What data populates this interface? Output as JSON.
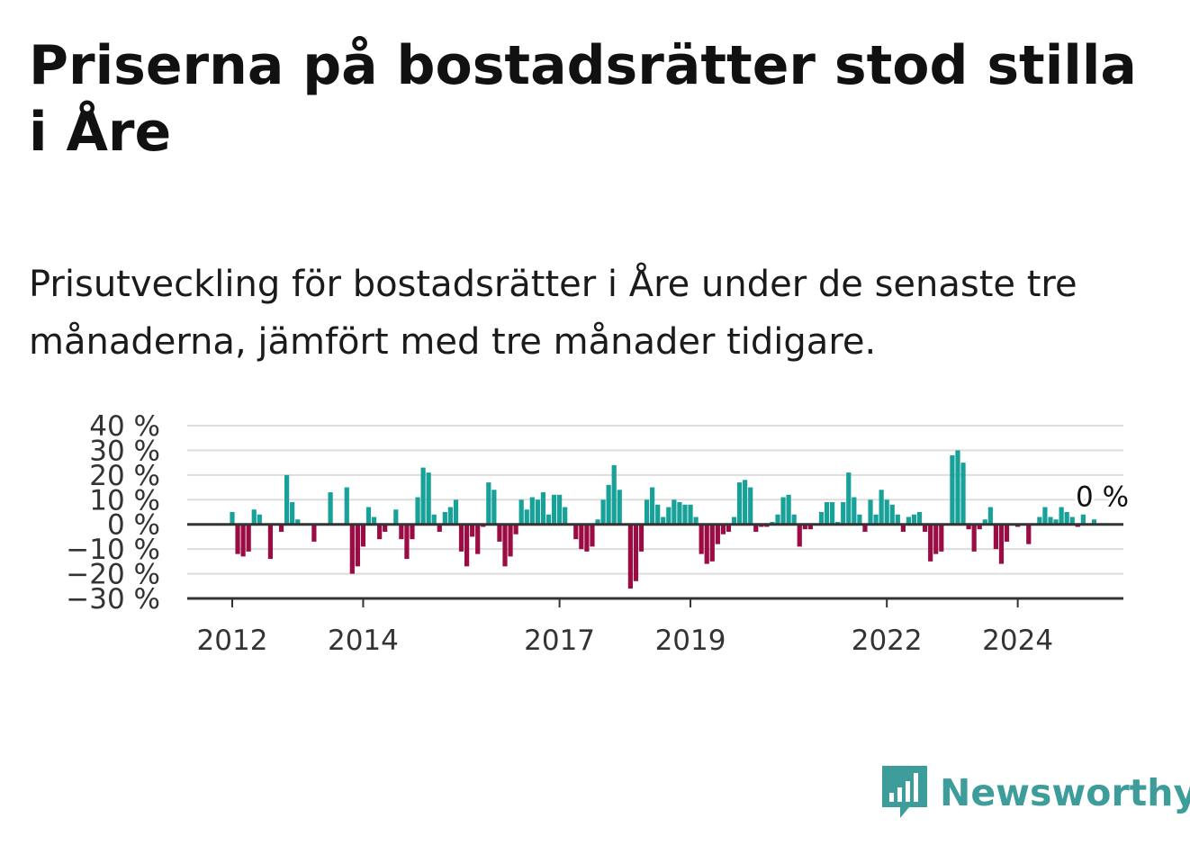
{
  "title": "Priserna på bostadsrätter stod stilla i Åre",
  "subtitle": "Prisutveckling för bostadsrätter i Åre under de senaste tre månaderna, jämfört med tre månader tidigare.",
  "brand": {
    "name": "Newsworthy",
    "color": "#3d9d9a"
  },
  "colors": {
    "positive": "#17a198",
    "negative": "#9b0b44",
    "grid": "#dddddd",
    "axis": "#333333"
  },
  "chart_data": {
    "type": "bar",
    "x_start": "2012-01",
    "frequency": "monthly",
    "ylim": [
      -30,
      40
    ],
    "yticks": [
      40,
      30,
      20,
      10,
      0,
      -10,
      -20,
      -30
    ],
    "ytick_labels": [
      "40 %",
      "30 %",
      "20 %",
      "10 %",
      "0 %",
      "−10 %",
      "−20 %",
      "−30 %"
    ],
    "xticks": [
      {
        "label": "2012",
        "date": "2012-01"
      },
      {
        "label": "2014",
        "date": "2014-01"
      },
      {
        "label": "2017",
        "date": "2017-01"
      },
      {
        "label": "2019",
        "date": "2019-01"
      },
      {
        "label": "2022",
        "date": "2022-01"
      },
      {
        "label": "2024",
        "date": "2024-01"
      }
    ],
    "grid": true,
    "last_value_label": "0 %",
    "values": [
      5,
      -12,
      -13,
      -11,
      6,
      4,
      0,
      -14,
      0,
      -3,
      20,
      9,
      2,
      0,
      0,
      -7,
      0,
      0,
      13,
      0,
      0,
      15,
      -20,
      -17,
      -9,
      7,
      3,
      -6,
      -3,
      0,
      6,
      -6,
      -14,
      -6,
      11,
      23,
      21,
      4,
      -3,
      5,
      7,
      10,
      -11,
      -17,
      -5,
      -12,
      -1,
      17,
      14,
      -7,
      -17,
      -13,
      -4,
      10,
      6,
      11,
      10,
      13,
      4,
      12,
      12,
      7,
      0,
      -6,
      -10,
      -11,
      -9,
      2,
      10,
      16,
      24,
      14,
      0,
      -26,
      -23,
      -11,
      10,
      15,
      8,
      3,
      7,
      10,
      9,
      8,
      8,
      3,
      -12,
      -16,
      -15,
      -8,
      -4,
      -3,
      3,
      17,
      18,
      15,
      -3,
      -1,
      -1,
      1,
      4,
      11,
      12,
      4,
      -9,
      -2,
      -2,
      0,
      5,
      9,
      9,
      1,
      9,
      21,
      11,
      4,
      -3,
      10,
      4,
      14,
      10,
      8,
      4,
      -3,
      3,
      4,
      5,
      -3,
      -15,
      -12,
      -11,
      0,
      28,
      30,
      25,
      -2,
      -11,
      -2,
      2,
      7,
      -10,
      -16,
      -7,
      0,
      -1,
      0,
      -8,
      0,
      3,
      7,
      3,
      2,
      7,
      5,
      3,
      -1,
      4,
      0,
      2,
      0
    ]
  }
}
